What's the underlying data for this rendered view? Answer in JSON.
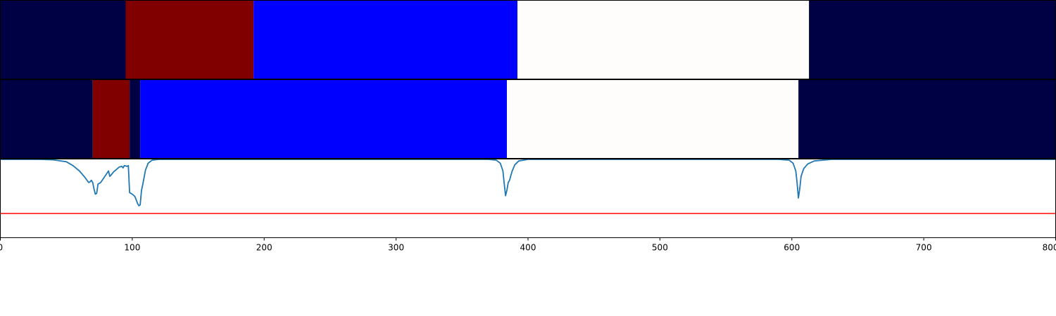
{
  "chart_data": {
    "type": "segmentation-with-signal",
    "x_range": [
      0,
      800
    ],
    "x_ticks": [
      0,
      100,
      200,
      300,
      400,
      500,
      600,
      700,
      800
    ],
    "x_tick_labels": [
      "0",
      "100",
      "200",
      "300",
      "400",
      "500",
      "600",
      "700",
      "800"
    ],
    "segment_tracks": [
      {
        "segments": [
          {
            "start": 0,
            "end": 95,
            "color": "#000044"
          },
          {
            "start": 95,
            "end": 192,
            "color": "#800000"
          },
          {
            "start": 192,
            "end": 392,
            "color": "#0000ff"
          },
          {
            "start": 392,
            "end": 613,
            "color": "#fffcfc"
          },
          {
            "start": 613,
            "end": 800,
            "color": "#000044"
          }
        ]
      },
      {
        "segments": [
          {
            "start": 0,
            "end": 70,
            "color": "#000044"
          },
          {
            "start": 70,
            "end": 98,
            "color": "#800000"
          },
          {
            "start": 98,
            "end": 106,
            "color": "#000044"
          },
          {
            "start": 106,
            "end": 384,
            "color": "#0000ff"
          },
          {
            "start": 384,
            "end": 605,
            "color": "#fffcfc"
          },
          {
            "start": 605,
            "end": 800,
            "color": "#000044"
          }
        ]
      }
    ],
    "signal": {
      "color": "#1f77b4",
      "y_range": [
        0,
        1
      ],
      "threshold": 0.3,
      "threshold_color": "#ff0000",
      "points": [
        [
          0,
          1.0
        ],
        [
          30,
          1.0
        ],
        [
          40,
          0.995
        ],
        [
          50,
          0.97
        ],
        [
          55,
          0.92
        ],
        [
          60,
          0.85
        ],
        [
          64,
          0.77
        ],
        [
          67,
          0.7
        ],
        [
          68,
          0.71
        ],
        [
          69,
          0.73
        ],
        [
          70,
          0.7
        ],
        [
          71,
          0.62
        ],
        [
          72,
          0.55
        ],
        [
          73,
          0.56
        ],
        [
          74,
          0.68
        ],
        [
          76,
          0.7
        ],
        [
          78,
          0.75
        ],
        [
          80,
          0.8
        ],
        [
          82,
          0.85
        ],
        [
          83,
          0.78
        ],
        [
          84,
          0.8
        ],
        [
          86,
          0.84
        ],
        [
          88,
          0.87
        ],
        [
          90,
          0.9
        ],
        [
          92,
          0.91
        ],
        [
          93,
          0.89
        ],
        [
          94,
          0.92
        ],
        [
          96,
          0.91
        ],
        [
          97,
          0.92
        ],
        [
          98,
          0.57
        ],
        [
          100,
          0.55
        ],
        [
          102,
          0.52
        ],
        [
          104,
          0.43
        ],
        [
          105,
          0.4
        ],
        [
          106,
          0.41
        ],
        [
          107,
          0.6
        ],
        [
          108,
          0.68
        ],
        [
          110,
          0.86
        ],
        [
          112,
          0.95
        ],
        [
          115,
          0.99
        ],
        [
          120,
          1.0
        ],
        [
          370,
          1.0
        ],
        [
          376,
          0.99
        ],
        [
          379,
          0.95
        ],
        [
          381,
          0.85
        ],
        [
          382,
          0.68
        ],
        [
          383,
          0.53
        ],
        [
          384,
          0.6
        ],
        [
          385,
          0.7
        ],
        [
          386,
          0.73
        ],
        [
          388,
          0.85
        ],
        [
          390,
          0.93
        ],
        [
          393,
          0.98
        ],
        [
          400,
          1.0
        ],
        [
          590,
          1.0
        ],
        [
          598,
          0.99
        ],
        [
          601,
          0.95
        ],
        [
          603,
          0.85
        ],
        [
          604,
          0.7
        ],
        [
          605,
          0.5
        ],
        [
          606,
          0.62
        ],
        [
          607,
          0.78
        ],
        [
          609,
          0.88
        ],
        [
          612,
          0.94
        ],
        [
          617,
          0.98
        ],
        [
          630,
          1.0
        ],
        [
          800,
          1.0
        ]
      ]
    },
    "grid": false,
    "legend": "none"
  }
}
